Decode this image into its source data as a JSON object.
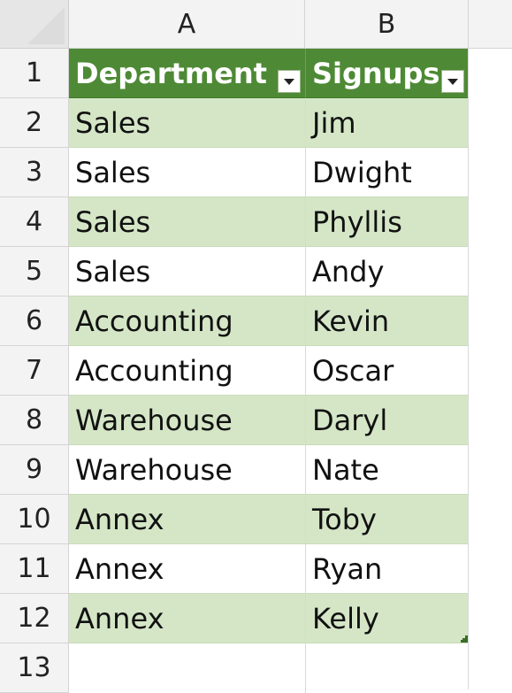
{
  "columns": [
    "A",
    "B"
  ],
  "rows": [
    "1",
    "2",
    "3",
    "4",
    "5",
    "6",
    "7",
    "8",
    "9",
    "10",
    "11",
    "12",
    "13"
  ],
  "table": {
    "headers": [
      "Department",
      "Signups"
    ],
    "data": [
      [
        "Sales",
        "Jim"
      ],
      [
        "Sales",
        "Dwight"
      ],
      [
        "Sales",
        "Phyllis"
      ],
      [
        "Sales",
        "Andy"
      ],
      [
        "Accounting",
        "Kevin"
      ],
      [
        "Accounting",
        "Oscar"
      ],
      [
        "Warehouse",
        "Daryl"
      ],
      [
        "Warehouse",
        "Nate"
      ],
      [
        "Annex",
        "Toby"
      ],
      [
        "Annex",
        "Ryan"
      ],
      [
        "Annex",
        "Kelly"
      ]
    ]
  },
  "colors": {
    "header_fill": "#4e8a35",
    "band_fill": "#d5e6c7",
    "plain_fill": "#ffffff"
  },
  "icons": {
    "filter": "filter-dropdown-icon",
    "resize": "table-resize-handle-icon"
  }
}
